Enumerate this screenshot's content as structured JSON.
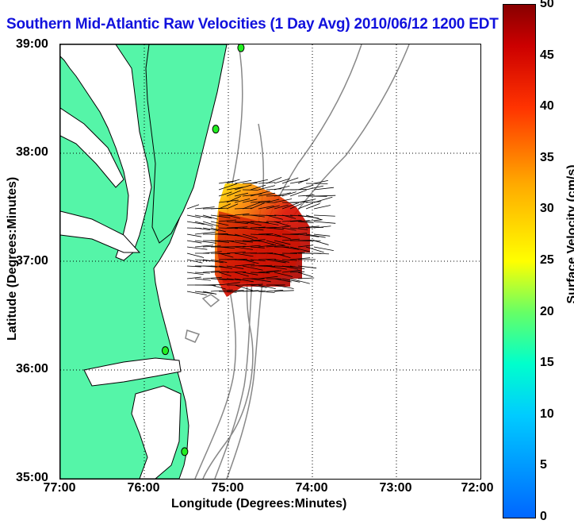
{
  "title": "Southern Mid-Atlantic Raw Velocities (1 Day Avg) 2010/06/12 1200 EDT",
  "xaxis": {
    "label": "Longitude (Degrees:Minutes)",
    "ticks": [
      "77:00",
      "76:00",
      "75:00",
      "74:00",
      "73:00",
      "72:00"
    ]
  },
  "yaxis": {
    "label": "Latitude (Degrees:Minutes)",
    "ticks": [
      "39:00",
      "38:00",
      "37:00",
      "36:00",
      "35:00"
    ]
  },
  "colorbar": {
    "label": "Surface Velocity (cm/s)",
    "ticks": [
      "50",
      "45",
      "40",
      "35",
      "30",
      "25",
      "20",
      "15",
      "10",
      "5",
      "0"
    ],
    "range": [
      0,
      50
    ]
  },
  "colors": {
    "land": "#55f5a8",
    "coast": "#000000",
    "bathymetry": "#888888",
    "station": "#22ee22",
    "title": "#1111dd"
  },
  "chart_data": {
    "type": "map",
    "lon_range": [
      -77,
      -72
    ],
    "lat_range": [
      35,
      39
    ],
    "grid": true,
    "stations": [
      {
        "lon": -74.85,
        "lat": 38.97
      },
      {
        "lon": -75.15,
        "lat": 38.22
      },
      {
        "lon": -75.75,
        "lat": 36.18
      },
      {
        "lon": -75.52,
        "lat": 35.25
      }
    ]
  }
}
